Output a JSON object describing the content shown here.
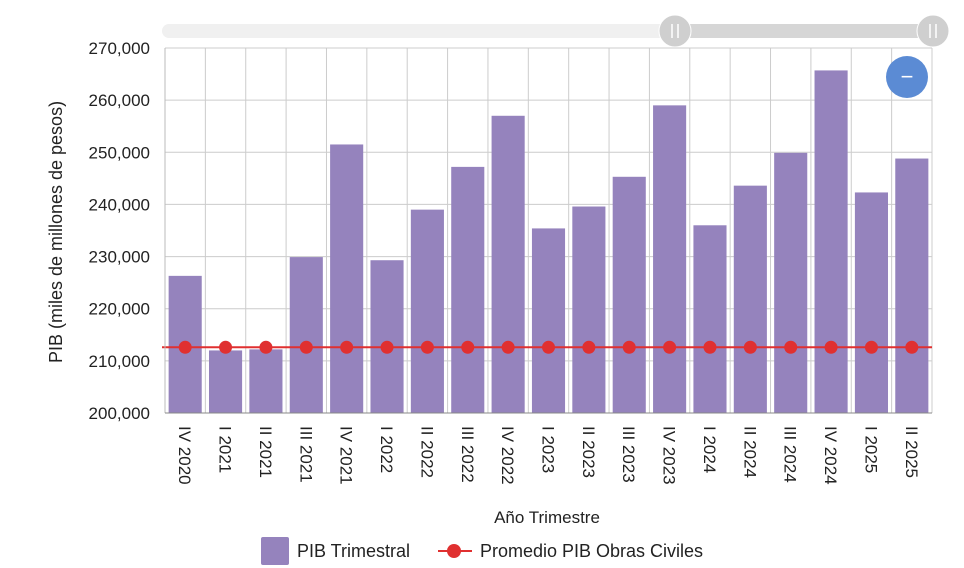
{
  "chart_data": {
    "type": "bar",
    "title": "",
    "xlabel": "Año Trimestre",
    "ylabel": "PIB (miles de millones de pesos)",
    "ylim": [
      200000,
      270000
    ],
    "yticks": [
      200000,
      210000,
      220000,
      230000,
      240000,
      250000,
      260000,
      270000
    ],
    "ytick_labels": [
      "200,000",
      "210,000",
      "220,000",
      "230,000",
      "240,000",
      "250,000",
      "260,000",
      "270,000"
    ],
    "categories": [
      "IV 2020",
      "I 2021",
      "II 2021",
      "III 2021",
      "IV 2021",
      "I 2022",
      "II 2022",
      "III 2022",
      "IV 2022",
      "I 2023",
      "II 2023",
      "III 2023",
      "IV 2023",
      "I 2024",
      "II 2024",
      "III 2024",
      "IV 2024",
      "I 2025",
      "II 2025"
    ],
    "series": [
      {
        "name": "PIB Trimestral",
        "kind": "bar",
        "color": "#9583bd",
        "values": [
          226300,
          212000,
          212200,
          229900,
          251500,
          229300,
          239000,
          247200,
          257000,
          235400,
          239600,
          245300,
          259000,
          236000,
          243600,
          249900,
          265700,
          242300,
          248800
        ]
      },
      {
        "name": "Promedio PIB Obras Civiles",
        "kind": "line",
        "color": "#e03030",
        "values": [
          212600,
          212600,
          212600,
          212600,
          212600,
          212600,
          212600,
          212600,
          212600,
          212600,
          212600,
          212600,
          212600,
          212600,
          212600,
          212600,
          212600,
          212600,
          212600
        ]
      }
    ],
    "legend_position": "bottom",
    "grid": true
  },
  "zoom_button": {
    "symbol": "−"
  }
}
